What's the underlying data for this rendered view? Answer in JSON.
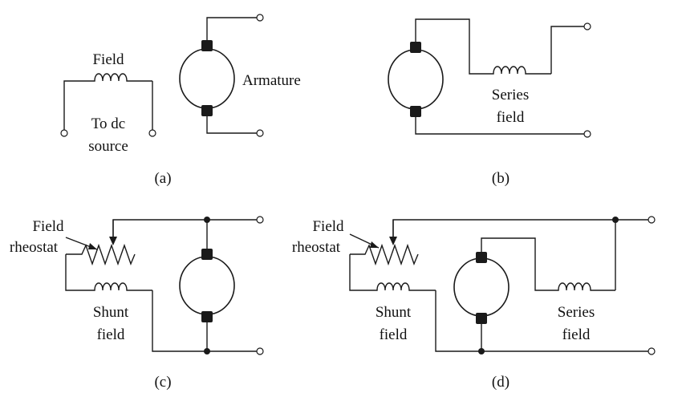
{
  "diagrams": {
    "a": {
      "caption": "(a)",
      "field_label": "Field",
      "source_label_1": "To dc",
      "source_label_2": "source",
      "armature_label": "Armature"
    },
    "b": {
      "caption": "(b)",
      "series_label_1": "Series",
      "series_label_2": "field"
    },
    "c": {
      "caption": "(c)",
      "rheostat_label_1": "Field",
      "rheostat_label_2": "rheostat",
      "shunt_label_1": "Shunt",
      "shunt_label_2": "field"
    },
    "d": {
      "caption": "(d)",
      "rheostat_label_1": "Field",
      "rheostat_label_2": "rheostat",
      "shunt_label_1": "Shunt",
      "shunt_label_2": "field",
      "series_label_1": "Series",
      "series_label_2": "field"
    }
  }
}
